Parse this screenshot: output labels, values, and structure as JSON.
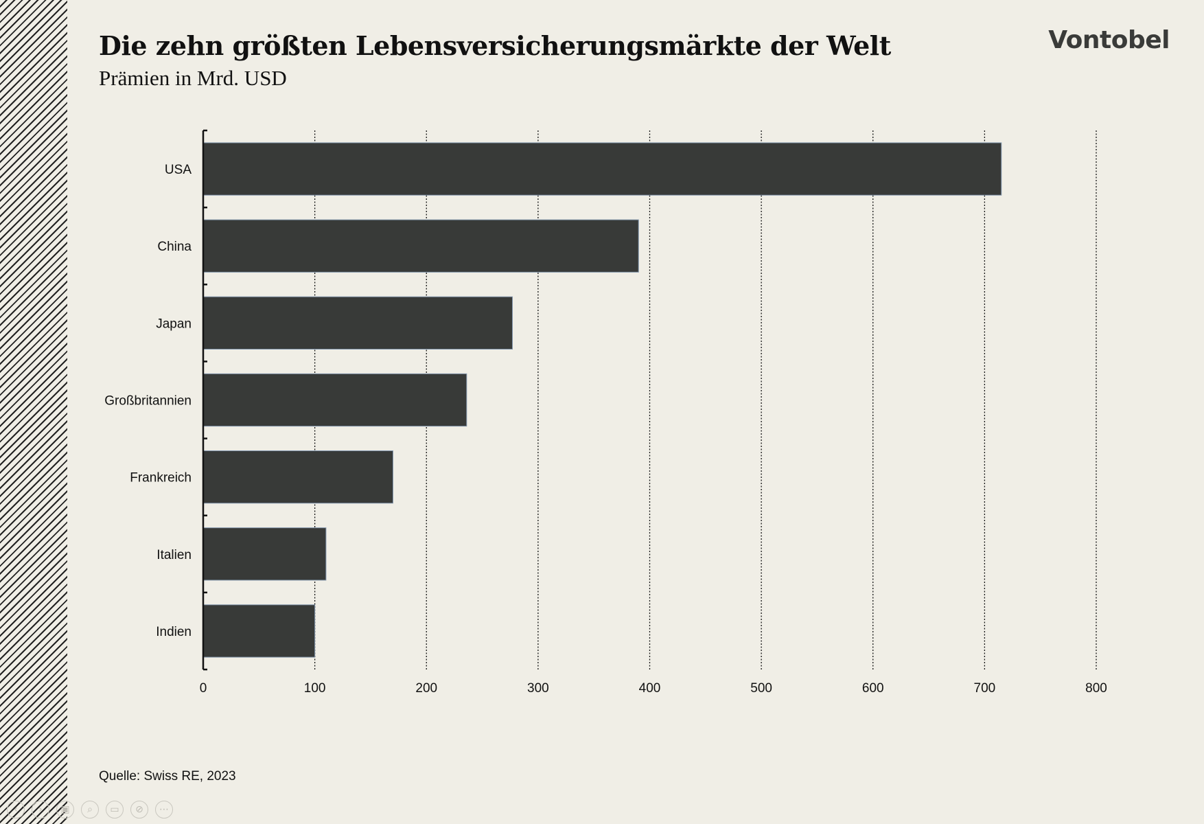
{
  "header": {
    "title": "Die zehn größten Lebensversicherungsmärkte der Welt",
    "subtitle": "Prämien in Mrd. USD",
    "brand": "Vontobel"
  },
  "footer": {
    "source": "Quelle: Swiss RE, 2023"
  },
  "toolbar": {
    "icons": [
      "prev-icon",
      "next-icon",
      "slides-icon",
      "zoom-icon",
      "subtitles-icon",
      "camera-off-icon",
      "more-icon"
    ]
  },
  "colors": {
    "background": "#f0eee6",
    "bar": "#383a38",
    "bar_edge": "#7f93aa",
    "text": "#111111",
    "brand": "#3a3b39"
  },
  "chart_data": {
    "type": "bar",
    "orientation": "horizontal",
    "categories": [
      "USA",
      "China",
      "Japan",
      "Großbritannien",
      "Frankreich",
      "Italien",
      "Indien"
    ],
    "values": [
      715,
      390,
      277,
      236,
      170,
      110,
      100
    ],
    "title": "Die zehn größten Lebensversicherungsmärkte der Welt",
    "subtitle": "Prämien in Mrd. USD",
    "xlim": [
      0,
      800
    ],
    "xticks": [
      0,
      100,
      200,
      300,
      400,
      500,
      600,
      700,
      800
    ],
    "grid": "vertical dotted",
    "legend": "none"
  }
}
